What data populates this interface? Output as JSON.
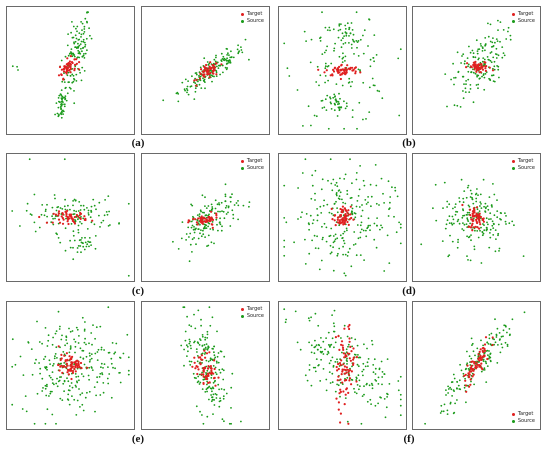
{
  "colors": {
    "target": "#e02020",
    "source": "#1a9a1a"
  },
  "legend": {
    "target_label": "Target",
    "source_label": "Source"
  },
  "captions": [
    "(a)",
    "(b)",
    "(c)",
    "(d)",
    "(e)",
    "(f)"
  ],
  "chart_data": [
    {
      "type": "scatter",
      "group": "(a)",
      "panel": 1,
      "legend": false,
      "xlim": [
        -1,
        1
      ],
      "ylim": [
        -1,
        1
      ],
      "series": [
        {
          "role": "source",
          "spec": [
            {
              "n": 130,
              "cx": 0.1,
              "cy": 0.25,
              "sx": 0.12,
              "sy": 0.35,
              "r": 0.6
            },
            {
              "n": 45,
              "cx": -0.15,
              "cy": -0.55,
              "sx": 0.05,
              "sy": 0.15,
              "r": 0.2
            },
            {
              "n": 3,
              "cx": -0.9,
              "cy": 0.05,
              "sx": 0.02,
              "sy": 0.02,
              "r": 0
            }
          ]
        },
        {
          "role": "target",
          "spec": [
            {
              "n": 55,
              "cx": -0.05,
              "cy": 0.05,
              "sx": 0.07,
              "sy": 0.08,
              "r": 0.5
            }
          ]
        }
      ]
    },
    {
      "type": "scatter",
      "group": "(a)",
      "panel": 2,
      "legend": true,
      "xlim": [
        -1,
        1
      ],
      "ylim": [
        -1,
        1
      ],
      "series": [
        {
          "role": "source",
          "spec": [
            {
              "n": 170,
              "cx": 0.1,
              "cy": 0.0,
              "sx": 0.28,
              "sy": 0.2,
              "r": 0.9
            }
          ]
        },
        {
          "role": "target",
          "spec": [
            {
              "n": 55,
              "cx": 0.05,
              "cy": -0.02,
              "sx": 0.09,
              "sy": 0.07,
              "r": 0.5
            }
          ]
        }
      ]
    },
    {
      "type": "scatter",
      "group": "(b)",
      "panel": 1,
      "legend": false,
      "xlim": [
        -1,
        1
      ],
      "ylim": [
        -1,
        1
      ],
      "series": [
        {
          "role": "source",
          "spec": [
            {
              "n": 110,
              "cx": 0.0,
              "cy": 0.0,
              "sx": 0.4,
              "sy": 0.45,
              "r": 0
            },
            {
              "n": 40,
              "cx": 0.05,
              "cy": 0.55,
              "sx": 0.2,
              "sy": 0.15,
              "r": 0
            },
            {
              "n": 30,
              "cx": -0.1,
              "cy": -0.55,
              "sx": 0.1,
              "sy": 0.12,
              "r": 0
            }
          ]
        },
        {
          "role": "target",
          "spec": [
            {
              "n": 60,
              "cx": 0.0,
              "cy": 0.0,
              "sx": 0.14,
              "sy": 0.05,
              "r": 0
            }
          ]
        }
      ]
    },
    {
      "type": "scatter",
      "group": "(b)",
      "panel": 2,
      "legend": true,
      "xlim": [
        -1,
        1
      ],
      "ylim": [
        -1,
        1
      ],
      "series": [
        {
          "role": "source",
          "spec": [
            {
              "n": 160,
              "cx": 0.05,
              "cy": 0.1,
              "sx": 0.22,
              "sy": 0.3,
              "r": 0.55
            }
          ]
        },
        {
          "role": "target",
          "spec": [
            {
              "n": 50,
              "cx": 0.05,
              "cy": 0.05,
              "sx": 0.1,
              "sy": 0.05,
              "r": 0
            }
          ]
        }
      ]
    },
    {
      "type": "scatter",
      "group": "(c)",
      "panel": 1,
      "legend": false,
      "xlim": [
        -1,
        1
      ],
      "ylim": [
        -1,
        1
      ],
      "series": [
        {
          "role": "source",
          "spec": [
            {
              "n": 120,
              "cx": 0.0,
              "cy": 0.05,
              "sx": 0.38,
              "sy": 0.15,
              "r": 0
            },
            {
              "n": 30,
              "cx": 0.25,
              "cy": -0.45,
              "sx": 0.15,
              "sy": 0.08,
              "r": 0.4
            },
            {
              "n": 3,
              "cx": 0.0,
              "cy": 0.0,
              "sx": 0.9,
              "sy": 0.9,
              "r": 0
            }
          ]
        },
        {
          "role": "target",
          "spec": [
            {
              "n": 55,
              "cx": 0.0,
              "cy": 0.0,
              "sx": 0.14,
              "sy": 0.05,
              "r": 0
            }
          ]
        }
      ]
    },
    {
      "type": "scatter",
      "group": "(c)",
      "panel": 2,
      "legend": true,
      "xlim": [
        -1,
        1
      ],
      "ylim": [
        -1,
        1
      ],
      "series": [
        {
          "role": "source",
          "spec": [
            {
              "n": 150,
              "cx": 0.05,
              "cy": -0.05,
              "sx": 0.25,
              "sy": 0.22,
              "r": 0.6
            }
          ]
        },
        {
          "role": "target",
          "spec": [
            {
              "n": 50,
              "cx": 0.0,
              "cy": -0.05,
              "sx": 0.11,
              "sy": 0.05,
              "r": 0
            }
          ]
        }
      ]
    },
    {
      "type": "scatter",
      "group": "(d)",
      "panel": 1,
      "legend": false,
      "xlim": [
        -1,
        1
      ],
      "ylim": [
        -1,
        1
      ],
      "series": [
        {
          "role": "source",
          "spec": [
            {
              "n": 230,
              "cx": 0.0,
              "cy": 0.0,
              "sx": 0.42,
              "sy": 0.42,
              "r": 0
            }
          ]
        },
        {
          "role": "target",
          "spec": [
            {
              "n": 60,
              "cx": 0.0,
              "cy": 0.0,
              "sx": 0.07,
              "sy": 0.09,
              "r": 0
            }
          ]
        }
      ]
    },
    {
      "type": "scatter",
      "group": "(d)",
      "panel": 2,
      "legend": true,
      "xlim": [
        -1,
        1
      ],
      "ylim": [
        -1,
        1
      ],
      "series": [
        {
          "role": "source",
          "spec": [
            {
              "n": 190,
              "cx": 0.0,
              "cy": 0.0,
              "sx": 0.28,
              "sy": 0.3,
              "r": 0
            }
          ]
        },
        {
          "role": "target",
          "spec": [
            {
              "n": 55,
              "cx": 0.0,
              "cy": 0.0,
              "sx": 0.07,
              "sy": 0.1,
              "r": 0
            }
          ]
        }
      ]
    },
    {
      "type": "scatter",
      "group": "(e)",
      "panel": 1,
      "legend": false,
      "xlim": [
        -1,
        1
      ],
      "ylim": [
        -1,
        1
      ],
      "series": [
        {
          "role": "source",
          "spec": [
            {
              "n": 260,
              "cx": 0.0,
              "cy": 0.0,
              "sx": 0.4,
              "sy": 0.38,
              "r": 0.15
            }
          ]
        },
        {
          "role": "target",
          "spec": [
            {
              "n": 70,
              "cx": 0.0,
              "cy": 0.0,
              "sx": 0.1,
              "sy": 0.09,
              "r": 0
            }
          ]
        }
      ]
    },
    {
      "type": "scatter",
      "group": "(e)",
      "panel": 2,
      "legend": true,
      "xlim": [
        -1,
        1
      ],
      "ylim": [
        -1,
        1
      ],
      "series": [
        {
          "role": "source",
          "spec": [
            {
              "n": 190,
              "cx": 0.0,
              "cy": 0.0,
              "sx": 0.18,
              "sy": 0.42,
              "r": -0.4
            }
          ]
        },
        {
          "role": "target",
          "spec": [
            {
              "n": 60,
              "cx": 0.0,
              "cy": -0.05,
              "sx": 0.1,
              "sy": 0.14,
              "r": -0.3
            }
          ]
        }
      ]
    },
    {
      "type": "scatter",
      "group": "(f)",
      "panel": 1,
      "legend": false,
      "xlim": [
        -1,
        1
      ],
      "ylim": [
        -1,
        1
      ],
      "series": [
        {
          "role": "source",
          "spec": [
            {
              "n": 210,
              "cx": 0.05,
              "cy": 0.05,
              "sx": 0.42,
              "sy": 0.38,
              "r": -0.55
            }
          ]
        },
        {
          "role": "target",
          "spec": [
            {
              "n": 80,
              "cx": 0.05,
              "cy": -0.05,
              "sx": 0.08,
              "sy": 0.35,
              "r": 0.3
            }
          ]
        }
      ]
    },
    {
      "type": "scatter",
      "group": "(f)",
      "panel": 2,
      "legend": true,
      "legend_pos": "bottom-right",
      "xlim": [
        -1,
        1
      ],
      "ylim": [
        -1,
        1
      ],
      "series": [
        {
          "role": "source",
          "spec": [
            {
              "n": 170,
              "cx": 0.05,
              "cy": 0.05,
              "sx": 0.32,
              "sy": 0.38,
              "r": 0.9
            }
          ]
        },
        {
          "role": "target",
          "spec": [
            {
              "n": 70,
              "cx": 0.0,
              "cy": 0.0,
              "sx": 0.12,
              "sy": 0.22,
              "r": 0.85
            }
          ]
        }
      ]
    }
  ]
}
